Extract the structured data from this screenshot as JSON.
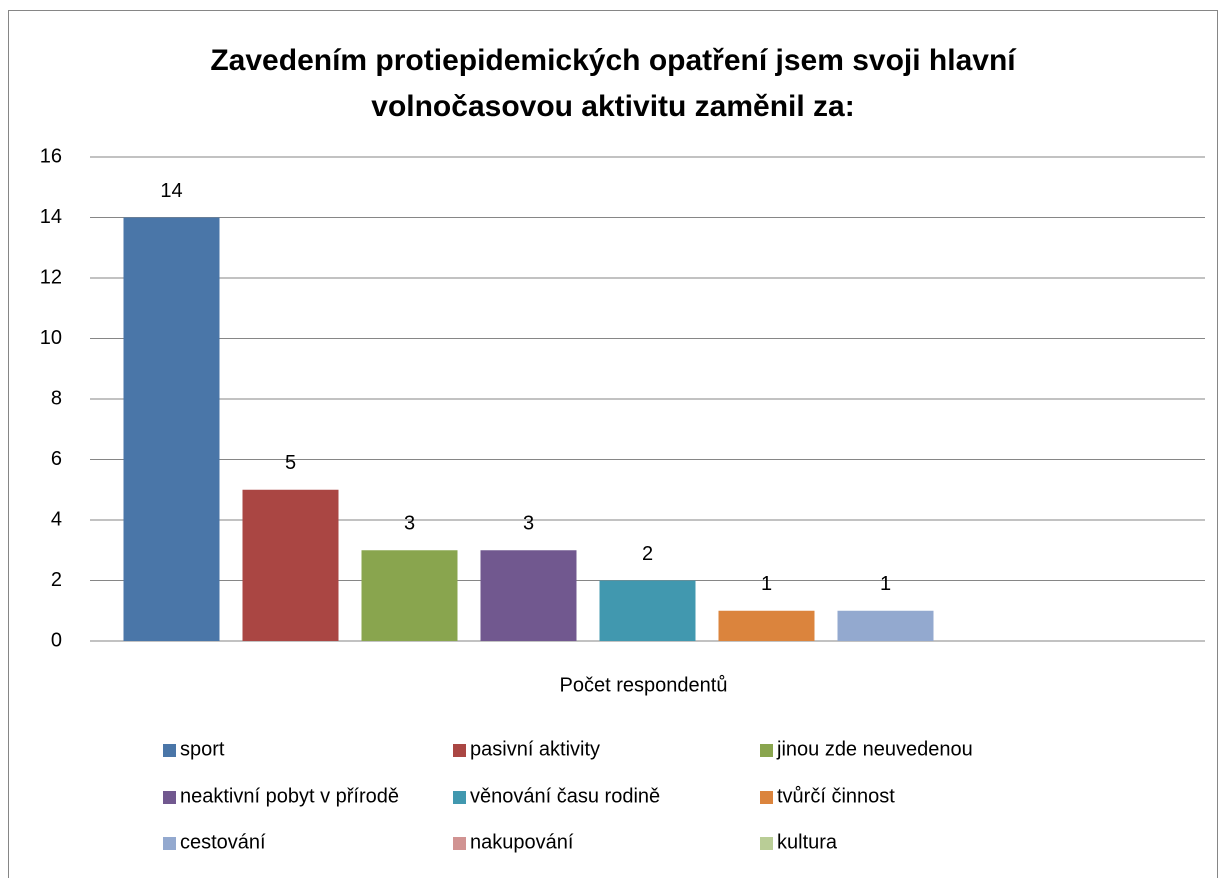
{
  "chart_data": {
    "type": "bar",
    "title": [
      "Zavedením protiepidemických opatření jsem svoji hlavní",
      "volnočasovou aktivitu zaměnil za:"
    ],
    "categories": [
      "Počet respondentů"
    ],
    "series": [
      {
        "name": "sport",
        "color": "#4a76a8",
        "values": [
          14
        ]
      },
      {
        "name": "pasivní aktivity",
        "color": "#aa4643",
        "values": [
          5
        ]
      },
      {
        "name": "jinou zde neuvedenou",
        "color": "#89a54e",
        "values": [
          3
        ]
      },
      {
        "name": "neaktivní pobyt v přírodě",
        "color": "#71588f",
        "values": [
          3
        ]
      },
      {
        "name": "věnování času rodině",
        "color": "#4198af",
        "values": [
          2
        ]
      },
      {
        "name": "tvůrčí činnost",
        "color": "#db843d",
        "values": [
          1
        ]
      },
      {
        "name": "cestování",
        "color": "#93a9cf",
        "values": [
          1
        ]
      },
      {
        "name": "nakupování",
        "color": "#d19392",
        "values": [
          0
        ]
      },
      {
        "name": "kultura",
        "color": "#b9cd96",
        "values": [
          0
        ]
      }
    ],
    "ylim": [
      0,
      16
    ],
    "yticks": [
      0,
      2,
      4,
      6,
      8,
      10,
      12,
      14,
      16
    ],
    "grid": true,
    "legend": "bottom"
  }
}
